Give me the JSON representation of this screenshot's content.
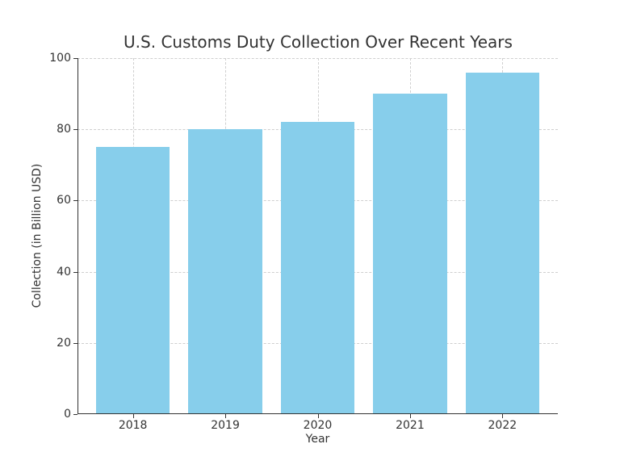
{
  "chart_data": {
    "type": "bar",
    "title": "U.S. Customs Duty Collection Over Recent Years",
    "xlabel": "Year",
    "ylabel": "Collection (in Billion USD)",
    "categories": [
      "2018",
      "2019",
      "2020",
      "2021",
      "2022"
    ],
    "values": [
      75,
      80,
      82,
      90,
      96
    ],
    "ylim": [
      0,
      100
    ],
    "yticks": [
      "0",
      "20",
      "40",
      "60",
      "80",
      "100"
    ],
    "grid": true,
    "bar_color": "#87ceeb"
  }
}
